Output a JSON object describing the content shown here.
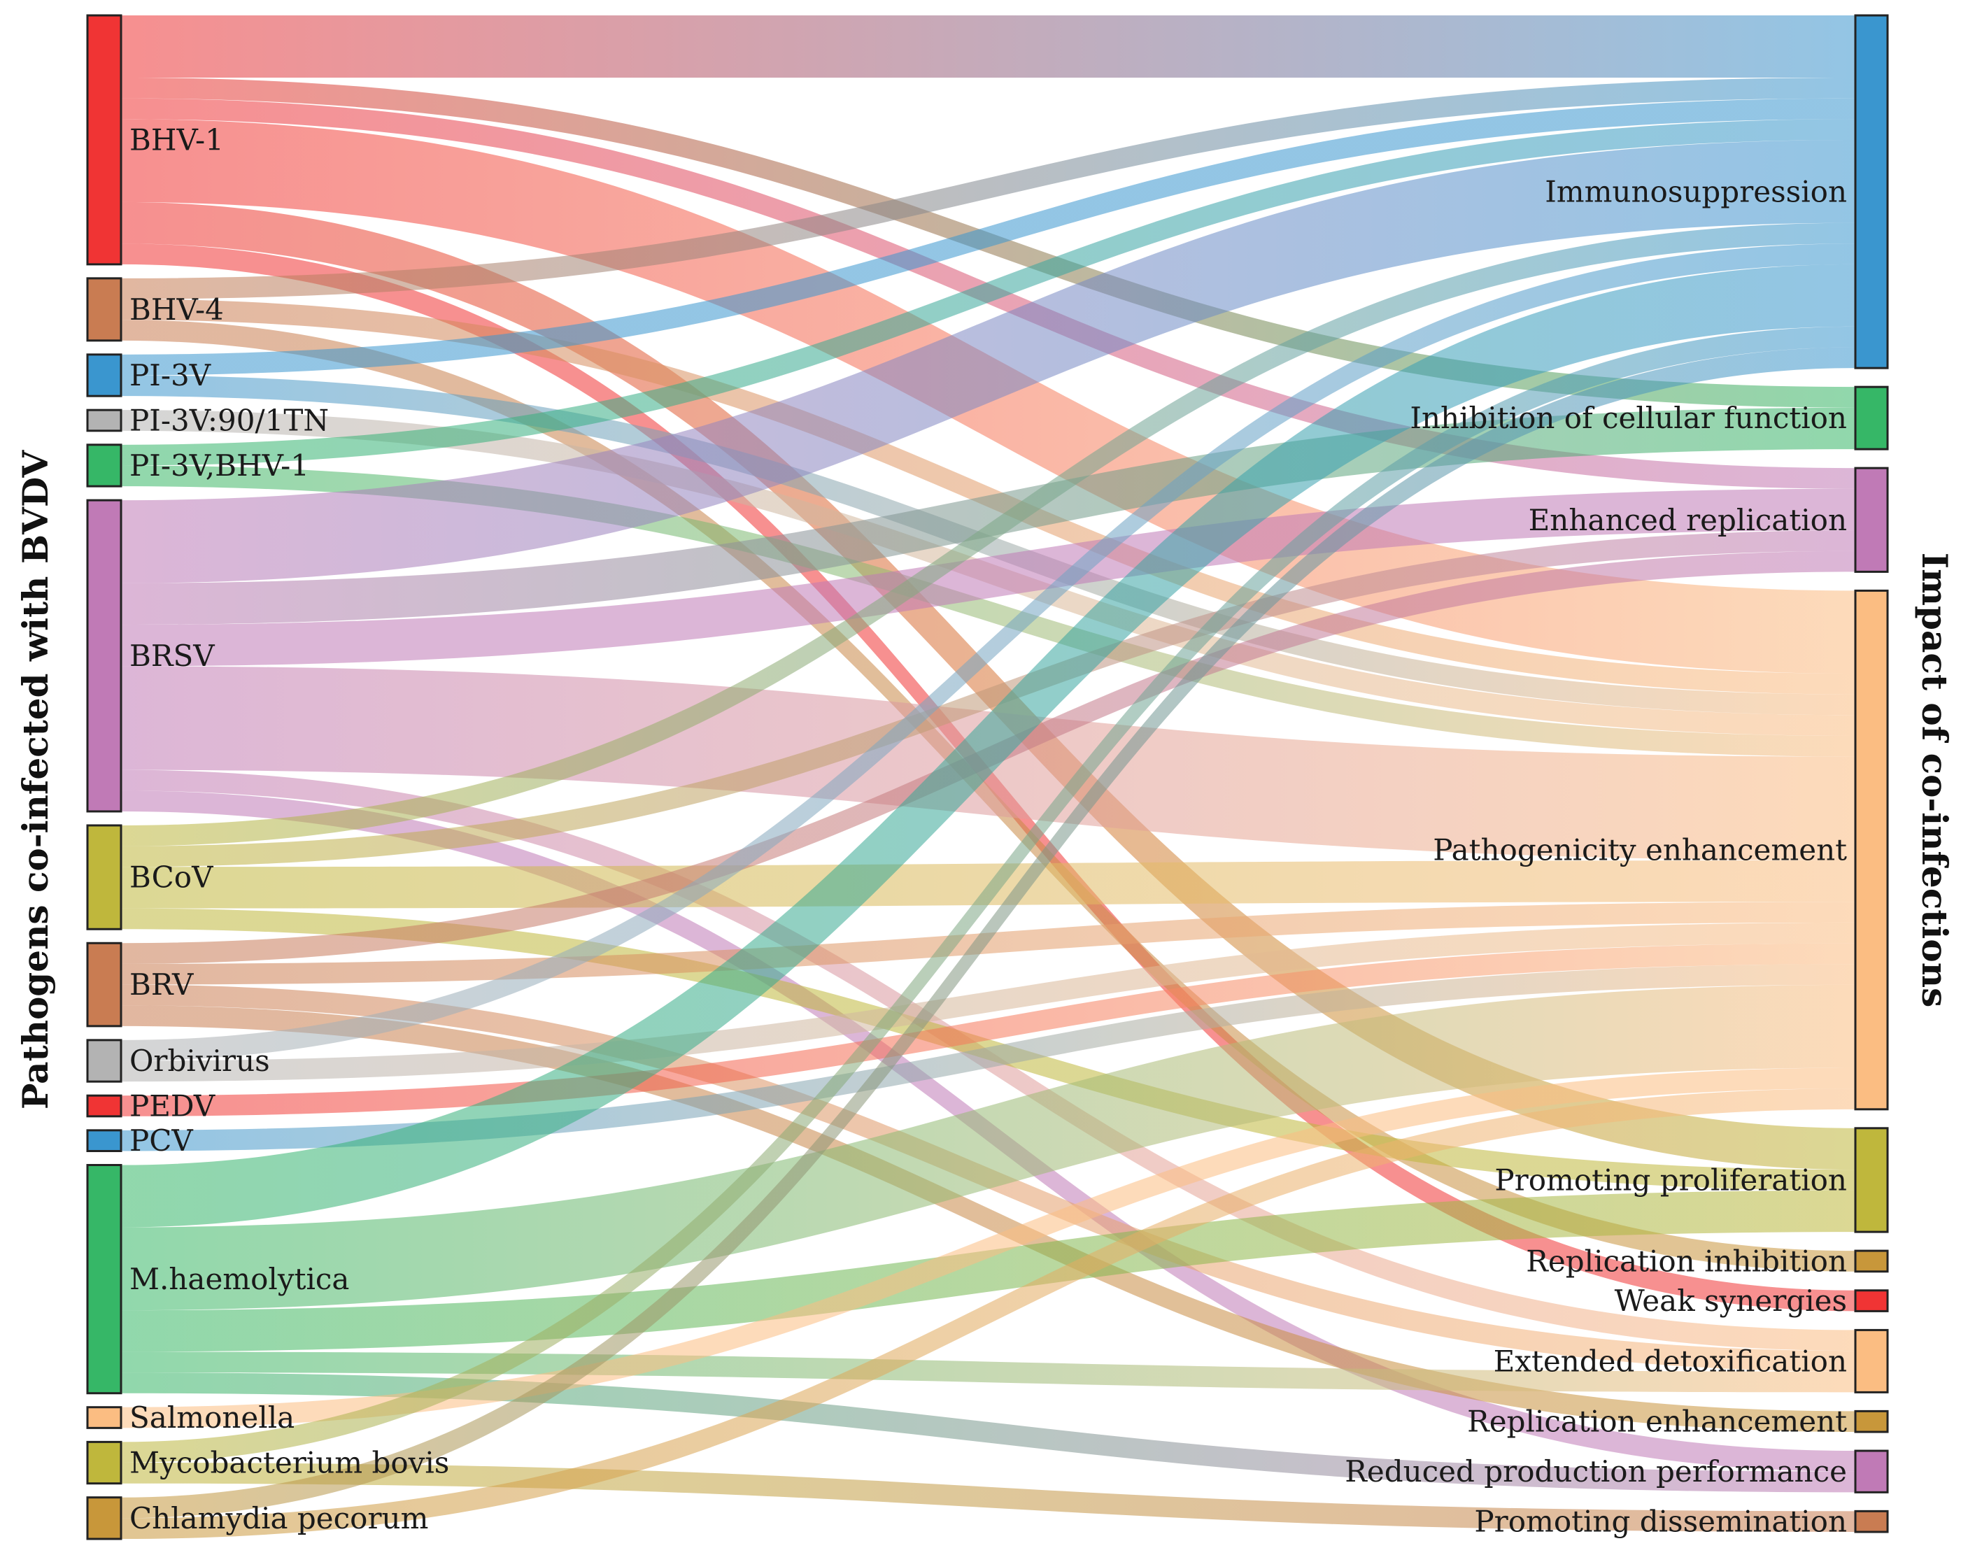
{
  "axis_titles": {
    "left": "Pathogens co-infected with BVDV",
    "right": "Impact of co-infections"
  },
  "sources": [
    {
      "label": "BHV-1",
      "color": "#f03434"
    },
    {
      "label": "BHV-4",
      "color": "#c97c52"
    },
    {
      "label": "PI-3V",
      "color": "#3a96cf"
    },
    {
      "label": "PI-3V:90/1TN",
      "color": "#b3b3b3"
    },
    {
      "label": "PI-3V,BHV-1",
      "color": "#36b767"
    },
    {
      "label": "BRSV",
      "color": "#c07ab6"
    },
    {
      "label": "BCoV",
      "color": "#bfb73c"
    },
    {
      "label": "BRV",
      "color": "#c97c52"
    },
    {
      "label": "Orbivirus",
      "color": "#b3b3b3"
    },
    {
      "label": "PEDV",
      "color": "#f03434"
    },
    {
      "label": "PCV",
      "color": "#3a96cf"
    },
    {
      "label": "M.haemolytica",
      "color": "#36b767"
    },
    {
      "label": "Salmonella",
      "color": "#fbbd82"
    },
    {
      "label": "Mycobacterium bovis",
      "color": "#bfb73c"
    },
    {
      "label": "Chlamydia pecorum",
      "color": "#c8973a"
    }
  ],
  "targets": [
    {
      "label": "Immunosuppression",
      "color": "#3a96cf"
    },
    {
      "label": "Inhibition of cellular function",
      "color": "#36b767"
    },
    {
      "label": "Enhanced replication",
      "color": "#c07ab6"
    },
    {
      "label": "Pathogenicity enhancement",
      "color": "#fbbd82"
    },
    {
      "label": "Promoting proliferation",
      "color": "#bfb73c"
    },
    {
      "label": "Replication inhibition",
      "color": "#c8973a"
    },
    {
      "label": "Weak synergies",
      "color": "#f03434"
    },
    {
      "label": "Extended detoxification",
      "color": "#fbbd82"
    },
    {
      "label": "Replication enhancement",
      "color": "#c8973a"
    },
    {
      "label": "Reduced production performance",
      "color": "#c07ab6"
    },
    {
      "label": "Promoting dissemination",
      "color": "#c97c52"
    }
  ],
  "links": [
    {
      "source": "BHV-1",
      "target": "Immunosuppression",
      "value": 3
    },
    {
      "source": "BHV-1",
      "target": "Inhibition of cellular function",
      "value": 1
    },
    {
      "source": "BHV-1",
      "target": "Enhanced replication",
      "value": 1
    },
    {
      "source": "BHV-1",
      "target": "Pathogenicity enhancement",
      "value": 4
    },
    {
      "source": "BHV-1",
      "target": "Promoting proliferation",
      "value": 2
    },
    {
      "source": "BHV-1",
      "target": "Weak synergies",
      "value": 1
    },
    {
      "source": "BHV-4",
      "target": "Immunosuppression",
      "value": 1
    },
    {
      "source": "BHV-4",
      "target": "Pathogenicity enhancement",
      "value": 1
    },
    {
      "source": "BHV-4",
      "target": "Replication inhibition",
      "value": 1
    },
    {
      "source": "PI-3V",
      "target": "Immunosuppression",
      "value": 1
    },
    {
      "source": "PI-3V",
      "target": "Pathogenicity enhancement",
      "value": 1
    },
    {
      "source": "PI-3V:90/1TN",
      "target": "Pathogenicity enhancement",
      "value": 1
    },
    {
      "source": "PI-3V,BHV-1",
      "target": "Immunosuppression",
      "value": 1
    },
    {
      "source": "PI-3V,BHV-1",
      "target": "Pathogenicity enhancement",
      "value": 1
    },
    {
      "source": "BRSV",
      "target": "Immunosuppression",
      "value": 4
    },
    {
      "source": "BRSV",
      "target": "Inhibition of cellular function",
      "value": 2
    },
    {
      "source": "BRSV",
      "target": "Enhanced replication",
      "value": 2
    },
    {
      "source": "BRSV",
      "target": "Pathogenicity enhancement",
      "value": 5
    },
    {
      "source": "BRSV",
      "target": "Extended detoxification",
      "value": 1
    },
    {
      "source": "BRSV",
      "target": "Reduced production performance",
      "value": 1
    },
    {
      "source": "BCoV",
      "target": "Immunosuppression",
      "value": 1
    },
    {
      "source": "BCoV",
      "target": "Enhanced replication",
      "value": 1
    },
    {
      "source": "BCoV",
      "target": "Pathogenicity enhancement",
      "value": 2
    },
    {
      "source": "BCoV",
      "target": "Promoting proliferation",
      "value": 1
    },
    {
      "source": "BRV",
      "target": "Enhanced replication",
      "value": 1
    },
    {
      "source": "BRV",
      "target": "Pathogenicity enhancement",
      "value": 1
    },
    {
      "source": "BRV",
      "target": "Extended detoxification",
      "value": 1
    },
    {
      "source": "BRV",
      "target": "Replication enhancement",
      "value": 1
    },
    {
      "source": "Orbivirus",
      "target": "Immunosuppression",
      "value": 1
    },
    {
      "source": "Orbivirus",
      "target": "Pathogenicity enhancement",
      "value": 1
    },
    {
      "source": "PEDV",
      "target": "Pathogenicity enhancement",
      "value": 1
    },
    {
      "source": "PCV",
      "target": "Pathogenicity enhancement",
      "value": 1
    },
    {
      "source": "M.haemolytica",
      "target": "Immunosuppression",
      "value": 3
    },
    {
      "source": "M.haemolytica",
      "target": "Pathogenicity enhancement",
      "value": 4
    },
    {
      "source": "M.haemolytica",
      "target": "Promoting proliferation",
      "value": 2
    },
    {
      "source": "M.haemolytica",
      "target": "Extended detoxification",
      "value": 1
    },
    {
      "source": "M.haemolytica",
      "target": "Reduced production performance",
      "value": 1
    },
    {
      "source": "Salmonella",
      "target": "Pathogenicity enhancement",
      "value": 1
    },
    {
      "source": "Mycobacterium bovis",
      "target": "Immunosuppression",
      "value": 1
    },
    {
      "source": "Mycobacterium bovis",
      "target": "Promoting dissemination",
      "value": 1
    },
    {
      "source": "Chlamydia pecorum",
      "target": "Immunosuppression",
      "value": 1
    },
    {
      "source": "Chlamydia pecorum",
      "target": "Pathogenicity enhancement",
      "value": 1
    }
  ]
}
